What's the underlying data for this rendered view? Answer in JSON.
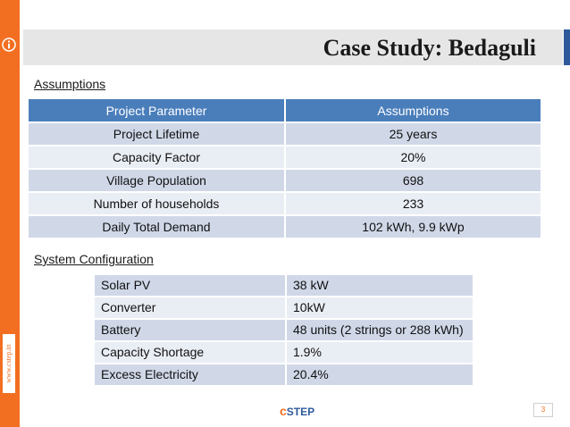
{
  "sidebar": {
    "url": "www.cstep.in"
  },
  "header": {
    "title": "Case Study: Bedaguli"
  },
  "assumptions": {
    "label": "Assumptions",
    "headers": [
      "Project Parameter",
      "Assumptions"
    ],
    "rows": [
      [
        "Project Lifetime",
        "25 years"
      ],
      [
        "Capacity Factor",
        "20%"
      ],
      [
        "Village Population",
        "698"
      ],
      [
        "Number of households",
        "233"
      ],
      [
        "Daily Total Demand",
        "102 kWh, 9.9 kWp"
      ]
    ]
  },
  "system": {
    "label": "System Configuration",
    "rows": [
      [
        "Solar PV",
        "38 kW"
      ],
      [
        "Converter",
        "10kW"
      ],
      [
        "Battery",
        "48 units (2 strings or 288 kWh)"
      ],
      [
        "Capacity Shortage",
        "1.9%"
      ],
      [
        "Excess Electricity",
        "20.4%"
      ]
    ]
  },
  "footer": {
    "logo_c": "c",
    "logo_rest": "STEP",
    "page_number": "3"
  },
  "colors": {
    "accent": "#f26f21",
    "blue": "#2e5a9c",
    "header_fill": "#4a7ebb"
  }
}
